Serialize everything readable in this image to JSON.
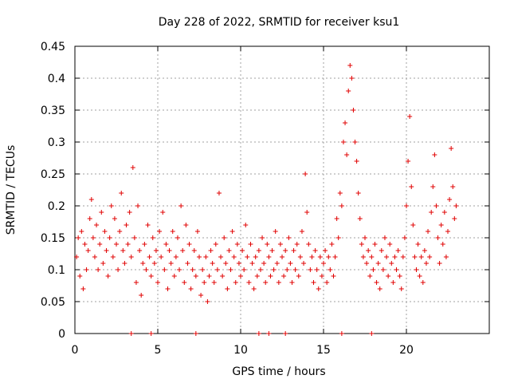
{
  "chart_data": {
    "type": "scatter",
    "title": "Day 228 of 2022, SRMTID for receiver ksu1",
    "xlabel": "GPS time / hours",
    "ylabel": "SRMTID / TECUs",
    "xlim": [
      0,
      25
    ],
    "ylim": [
      0,
      0.45
    ],
    "xticks": [
      0,
      5,
      10,
      15,
      20
    ],
    "xtick_labels": [
      "0",
      "5",
      "10",
      "15",
      "20"
    ],
    "yticks": [
      0,
      0.05,
      0.1,
      0.15,
      0.2,
      0.25,
      0.3,
      0.35,
      0.4,
      0.45
    ],
    "ytick_labels": [
      "0",
      "0.05",
      "0.1",
      "0.15",
      "0.2",
      "0.25",
      "0.3",
      "0.35",
      "0.4",
      "0.45"
    ],
    "grid": true,
    "marker": "plus",
    "series": [
      {
        "name": "SRMTID",
        "color": "#e00000",
        "points": [
          [
            0.1,
            0.12
          ],
          [
            0.2,
            0.15
          ],
          [
            0.3,
            0.09
          ],
          [
            0.4,
            0.16
          ],
          [
            0.5,
            0.07
          ],
          [
            0.6,
            0.14
          ],
          [
            0.7,
            0.1
          ],
          [
            0.8,
            0.13
          ],
          [
            0.9,
            0.18
          ],
          [
            1.0,
            0.21
          ],
          [
            1.1,
            0.15
          ],
          [
            1.2,
            0.12
          ],
          [
            1.3,
            0.17
          ],
          [
            1.4,
            0.1
          ],
          [
            1.5,
            0.14
          ],
          [
            1.6,
            0.19
          ],
          [
            1.7,
            0.11
          ],
          [
            1.8,
            0.16
          ],
          [
            1.9,
            0.13
          ],
          [
            2.0,
            0.09
          ],
          [
            2.1,
            0.15
          ],
          [
            2.2,
            0.2
          ],
          [
            2.3,
            0.12
          ],
          [
            2.4,
            0.18
          ],
          [
            2.5,
            0.14
          ],
          [
            2.6,
            0.1
          ],
          [
            2.7,
            0.16
          ],
          [
            2.8,
            0.22
          ],
          [
            2.9,
            0.13
          ],
          [
            3.0,
            0.11
          ],
          [
            3.1,
            0.17
          ],
          [
            3.2,
            0.14
          ],
          [
            3.3,
            0.19
          ],
          [
            3.4,
            0.12
          ],
          [
            3.5,
            0.26
          ],
          [
            3.6,
            0.15
          ],
          [
            3.7,
            0.08
          ],
          [
            3.8,
            0.2
          ],
          [
            3.9,
            0.13
          ],
          [
            4.0,
            0.06
          ],
          [
            4.1,
            0.11
          ],
          [
            4.2,
            0.14
          ],
          [
            4.3,
            0.1
          ],
          [
            4.4,
            0.17
          ],
          [
            4.5,
            0.12
          ],
          [
            4.6,
            0.09
          ],
          [
            4.7,
            0.15
          ],
          [
            4.8,
            0.11
          ],
          [
            4.9,
            0.13
          ],
          [
            5.0,
            0.08
          ],
          [
            5.1,
            0.16
          ],
          [
            5.2,
            0.12
          ],
          [
            5.3,
            0.19
          ],
          [
            5.4,
            0.1
          ],
          [
            5.5,
            0.14
          ],
          [
            5.6,
            0.07
          ],
          [
            5.7,
            0.13
          ],
          [
            5.8,
            0.11
          ],
          [
            5.9,
            0.16
          ],
          [
            6.0,
            0.09
          ],
          [
            6.1,
            0.12
          ],
          [
            6.2,
            0.15
          ],
          [
            6.3,
            0.1
          ],
          [
            6.4,
            0.2
          ],
          [
            6.5,
            0.13
          ],
          [
            6.6,
            0.08
          ],
          [
            6.7,
            0.17
          ],
          [
            6.8,
            0.11
          ],
          [
            6.9,
            0.14
          ],
          [
            7.0,
            0.07
          ],
          [
            7.1,
            0.1
          ],
          [
            7.2,
            0.13
          ],
          [
            7.3,
            0.09
          ],
          [
            7.4,
            0.16
          ],
          [
            7.5,
            0.12
          ],
          [
            7.6,
            0.06
          ],
          [
            7.7,
            0.1
          ],
          [
            7.8,
            0.08
          ],
          [
            7.9,
            0.12
          ],
          [
            8.0,
            0.05
          ],
          [
            8.1,
            0.09
          ],
          [
            8.2,
            0.13
          ],
          [
            8.3,
            0.11
          ],
          [
            8.4,
            0.08
          ],
          [
            8.5,
            0.14
          ],
          [
            8.6,
            0.1
          ],
          [
            8.7,
            0.22
          ],
          [
            8.8,
            0.12
          ],
          [
            8.9,
            0.09
          ],
          [
            9.0,
            0.15
          ],
          [
            9.1,
            0.11
          ],
          [
            9.2,
            0.07
          ],
          [
            9.3,
            0.13
          ],
          [
            9.4,
            0.1
          ],
          [
            9.5,
            0.16
          ],
          [
            9.6,
            0.12
          ],
          [
            9.7,
            0.08
          ],
          [
            9.8,
            0.14
          ],
          [
            9.9,
            0.11
          ],
          [
            10.0,
            0.09
          ],
          [
            10.1,
            0.13
          ],
          [
            10.2,
            0.1
          ],
          [
            10.3,
            0.17
          ],
          [
            10.4,
            0.12
          ],
          [
            10.5,
            0.08
          ],
          [
            10.6,
            0.14
          ],
          [
            10.7,
            0.11
          ],
          [
            10.8,
            0.07
          ],
          [
            10.9,
            0.12
          ],
          [
            11.0,
            0.09
          ],
          [
            11.1,
            0.13
          ],
          [
            11.2,
            0.1
          ],
          [
            11.3,
            0.15
          ],
          [
            11.4,
            0.11
          ],
          [
            11.5,
            0.08
          ],
          [
            11.6,
            0.14
          ],
          [
            11.7,
            0.12
          ],
          [
            11.8,
            0.09
          ],
          [
            11.9,
            0.13
          ],
          [
            12.0,
            0.1
          ],
          [
            12.1,
            0.16
          ],
          [
            12.2,
            0.11
          ],
          [
            12.3,
            0.08
          ],
          [
            12.4,
            0.14
          ],
          [
            12.5,
            0.12
          ],
          [
            12.6,
            0.09
          ],
          [
            12.7,
            0.13
          ],
          [
            12.8,
            0.1
          ],
          [
            12.9,
            0.15
          ],
          [
            13.0,
            0.11
          ],
          [
            13.1,
            0.08
          ],
          [
            13.2,
            0.13
          ],
          [
            13.3,
            0.1
          ],
          [
            13.4,
            0.14
          ],
          [
            13.5,
            0.09
          ],
          [
            13.6,
            0.12
          ],
          [
            13.7,
            0.16
          ],
          [
            13.8,
            0.11
          ],
          [
            13.9,
            0.25
          ],
          [
            14.0,
            0.19
          ],
          [
            14.1,
            0.14
          ],
          [
            14.2,
            0.1
          ],
          [
            14.3,
            0.12
          ],
          [
            14.4,
            0.08
          ],
          [
            14.5,
            0.13
          ],
          [
            14.6,
            0.1
          ],
          [
            14.7,
            0.07
          ],
          [
            14.8,
            0.12
          ],
          [
            14.9,
            0.09
          ],
          [
            15.0,
            0.11
          ],
          [
            15.1,
            0.13
          ],
          [
            15.2,
            0.08
          ],
          [
            15.3,
            0.12
          ],
          [
            15.4,
            0.1
          ],
          [
            15.5,
            0.14
          ],
          [
            15.6,
            0.09
          ],
          [
            15.7,
            0.12
          ],
          [
            15.8,
            0.18
          ],
          [
            15.9,
            0.15
          ],
          [
            16.0,
            0.22
          ],
          [
            16.1,
            0.2
          ],
          [
            16.2,
            0.3
          ],
          [
            16.3,
            0.33
          ],
          [
            16.4,
            0.28
          ],
          [
            16.5,
            0.38
          ],
          [
            16.6,
            0.42
          ],
          [
            16.7,
            0.4
          ],
          [
            16.8,
            0.35
          ],
          [
            16.9,
            0.3
          ],
          [
            17.0,
            0.27
          ],
          [
            17.1,
            0.22
          ],
          [
            17.2,
            0.18
          ],
          [
            17.3,
            0.14
          ],
          [
            17.4,
            0.12
          ],
          [
            17.5,
            0.15
          ],
          [
            17.6,
            0.11
          ],
          [
            17.7,
            0.13
          ],
          [
            17.8,
            0.09
          ],
          [
            17.9,
            0.12
          ],
          [
            18.0,
            0.1
          ],
          [
            18.1,
            0.14
          ],
          [
            18.2,
            0.08
          ],
          [
            18.3,
            0.11
          ],
          [
            18.4,
            0.07
          ],
          [
            18.5,
            0.13
          ],
          [
            18.6,
            0.1
          ],
          [
            18.7,
            0.15
          ],
          [
            18.8,
            0.12
          ],
          [
            18.9,
            0.09
          ],
          [
            19.0,
            0.14
          ],
          [
            19.1,
            0.11
          ],
          [
            19.2,
            0.08
          ],
          [
            19.3,
            0.12
          ],
          [
            19.4,
            0.1
          ],
          [
            19.5,
            0.13
          ],
          [
            19.6,
            0.09
          ],
          [
            19.7,
            0.07
          ],
          [
            19.8,
            0.12
          ],
          [
            19.9,
            0.15
          ],
          [
            20.0,
            0.2
          ],
          [
            20.1,
            0.27
          ],
          [
            20.2,
            0.34
          ],
          [
            20.3,
            0.23
          ],
          [
            20.4,
            0.17
          ],
          [
            20.5,
            0.12
          ],
          [
            20.6,
            0.1
          ],
          [
            20.7,
            0.14
          ],
          [
            20.8,
            0.09
          ],
          [
            20.9,
            0.12
          ],
          [
            21.0,
            0.08
          ],
          [
            21.1,
            0.13
          ],
          [
            21.2,
            0.11
          ],
          [
            21.3,
            0.16
          ],
          [
            21.4,
            0.12
          ],
          [
            21.5,
            0.19
          ],
          [
            21.6,
            0.23
          ],
          [
            21.7,
            0.28
          ],
          [
            21.8,
            0.2
          ],
          [
            21.9,
            0.15
          ],
          [
            22.0,
            0.11
          ],
          [
            22.1,
            0.17
          ],
          [
            22.2,
            0.14
          ],
          [
            22.3,
            0.19
          ],
          [
            22.4,
            0.12
          ],
          [
            22.5,
            0.16
          ],
          [
            22.6,
            0.21
          ],
          [
            22.7,
            0.29
          ],
          [
            22.8,
            0.23
          ],
          [
            22.9,
            0.18
          ],
          [
            23.0,
            0.2
          ],
          [
            3.4,
            0.0
          ],
          [
            7.3,
            0.0
          ],
          [
            11.1,
            0.0
          ],
          [
            11.7,
            0.0
          ],
          [
            12.7,
            0.0
          ],
          [
            16.1,
            0.0
          ],
          [
            17.9,
            0.0
          ],
          [
            4.6,
            0.0
          ]
        ]
      }
    ]
  }
}
